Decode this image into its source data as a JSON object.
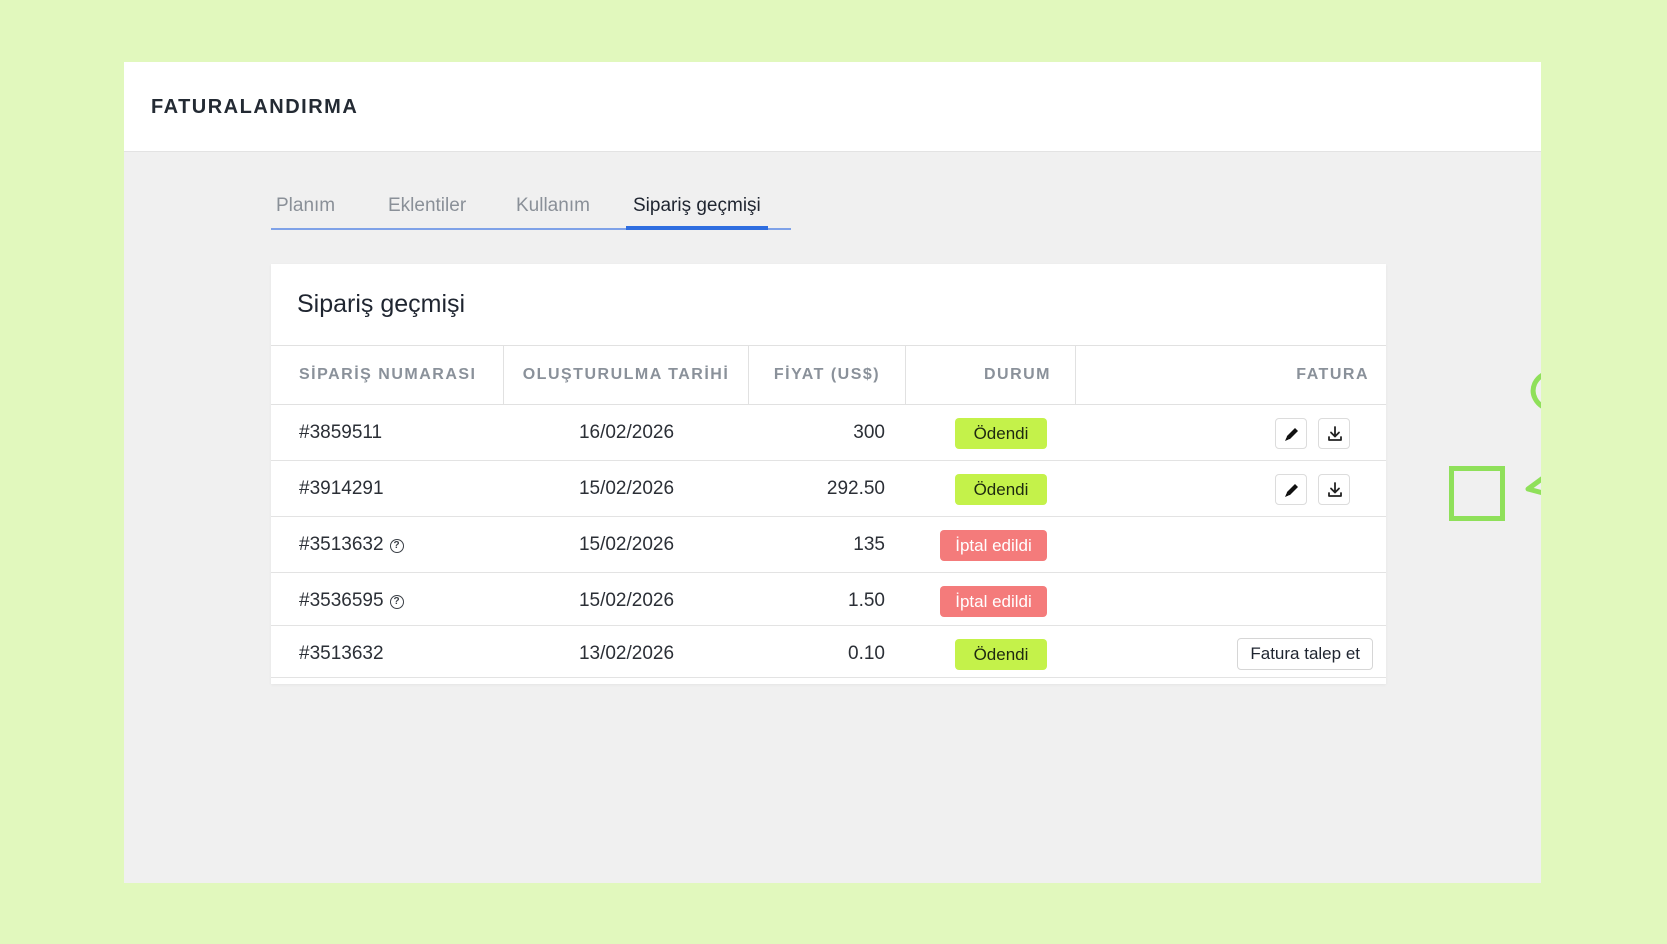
{
  "header": {
    "title": "FATURALANDIRMA"
  },
  "tabs": [
    {
      "label": "Planım",
      "active": false
    },
    {
      "label": "Eklentiler",
      "active": false
    },
    {
      "label": "Kullanım",
      "active": false
    },
    {
      "label": "Sipariş geçmişi",
      "active": true
    }
  ],
  "card": {
    "title": "Sipariş geçmişi"
  },
  "table": {
    "columns": [
      "SİPARİŞ NUMARASI",
      "OLUŞTURULMA TARİHİ",
      "FİYAT (US$)",
      "DURUM",
      "FATURA"
    ],
    "rows": [
      {
        "order": "#3859511",
        "date": "16/02/2026",
        "price": "300",
        "status": "Ödendi",
        "status_type": "paid",
        "info_icon": false,
        "invoice": "icons"
      },
      {
        "order": "#3914291",
        "date": "15/02/2026",
        "price": "292.50",
        "status": "Ödendi",
        "status_type": "paid",
        "info_icon": false,
        "invoice": "icons"
      },
      {
        "order": "#3513632",
        "date": "15/02/2026",
        "price": "135",
        "status": "İptal edildi",
        "status_type": "cancelled",
        "info_icon": true,
        "invoice": "none"
      },
      {
        "order": "#3536595",
        "date": "15/02/2026",
        "price": "1.50",
        "status": "İptal edildi",
        "status_type": "cancelled",
        "info_icon": true,
        "invoice": "none"
      },
      {
        "order": "#3513632",
        "date": "13/02/2026",
        "price": "0.10",
        "status": "Ödendi",
        "status_type": "paid",
        "info_icon": false,
        "invoice": "request"
      }
    ],
    "request_invoice_label": "Fatura talep et",
    "info_icon_glyph": "?"
  },
  "colors": {
    "background": "#e1f8bd",
    "paid_badge": "#c4f24a",
    "cancelled_badge": "#f47b7b",
    "active_tab": "#2f6ee0",
    "annotation": "#8fe05a"
  },
  "icons": {
    "edit": "pencil-icon",
    "download": "download-icon",
    "info": "question-circle-icon"
  }
}
